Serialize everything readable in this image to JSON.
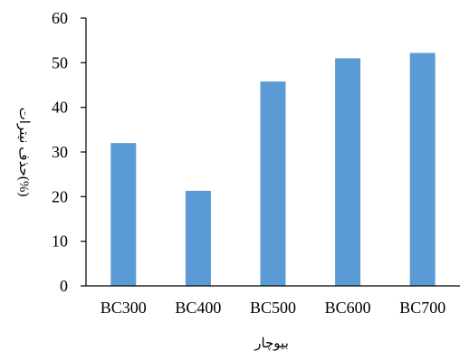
{
  "chart_data": {
    "type": "bar",
    "title": "",
    "xlabel": "بیوچار",
    "ylabel": "حذف نیترات(%)",
    "categories": [
      "BC300",
      "BC400",
      "BC500",
      "BC600",
      "BC700"
    ],
    "values": [
      32,
      21.3,
      45.8,
      51,
      52.2
    ],
    "ylim": [
      0,
      60
    ],
    "yticks": [
      0,
      10,
      20,
      30,
      40,
      50,
      60
    ],
    "grid": false,
    "legend": "none",
    "bar_color": "#5B9BD5"
  }
}
